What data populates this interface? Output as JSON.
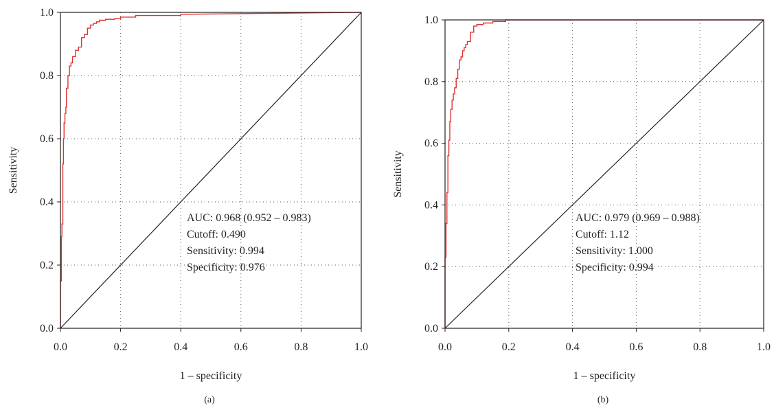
{
  "chart_data": [
    {
      "type": "line",
      "panel_label": "(a)",
      "xlabel": "1 – specificity",
      "ylabel": "Sensitivity",
      "xlim": [
        0,
        1
      ],
      "ylim": [
        0,
        1
      ],
      "xticks": [
        "0.0",
        "0.2",
        "0.4",
        "0.6",
        "0.8",
        "1.0"
      ],
      "yticks": [
        "0.0",
        "0.2",
        "0.4",
        "0.6",
        "0.8",
        "1.0"
      ],
      "grid": "dotted",
      "annotations": [
        "AUC: 0.968 (0.952 – 0.983)",
        "Cutoff: 0.490",
        "Sensitivity: 0.994",
        "Specificity: 0.976"
      ],
      "series": [
        {
          "color": "#e0312f",
          "x": [
            0.0,
            0.0,
            0.003,
            0.003,
            0.005,
            0.005,
            0.008,
            0.008,
            0.01,
            0.01,
            0.012,
            0.012,
            0.015,
            0.015,
            0.018,
            0.018,
            0.02,
            0.02,
            0.025,
            0.025,
            0.03,
            0.03,
            0.035,
            0.035,
            0.04,
            0.04,
            0.05,
            0.05,
            0.06,
            0.06,
            0.07,
            0.07,
            0.08,
            0.08,
            0.09,
            0.09,
            0.1,
            0.1,
            0.11,
            0.11,
            0.12,
            0.12,
            0.13,
            0.13,
            0.15,
            0.15,
            0.18,
            0.18,
            0.2,
            0.2,
            0.25,
            0.25,
            0.4,
            0.4,
            1.0
          ],
          "y": [
            0.0,
            0.15,
            0.15,
            0.29,
            0.29,
            0.33,
            0.33,
            0.52,
            0.52,
            0.6,
            0.6,
            0.65,
            0.65,
            0.68,
            0.68,
            0.7,
            0.7,
            0.76,
            0.76,
            0.8,
            0.8,
            0.83,
            0.83,
            0.84,
            0.84,
            0.86,
            0.86,
            0.88,
            0.88,
            0.89,
            0.89,
            0.92,
            0.92,
            0.93,
            0.93,
            0.95,
            0.95,
            0.96,
            0.96,
            0.965,
            0.965,
            0.97,
            0.97,
            0.975,
            0.975,
            0.978,
            0.978,
            0.98,
            0.98,
            0.985,
            0.985,
            0.99,
            0.99,
            0.994,
            1.0
          ]
        }
      ]
    },
    {
      "type": "line",
      "panel_label": "(b)",
      "xlabel": "1 – specificity",
      "ylabel": "Sensitivity",
      "xlim": [
        0,
        1
      ],
      "ylim": [
        0,
        1
      ],
      "xticks": [
        "0.0",
        "0.2",
        "0.4",
        "0.6",
        "0.8",
        "1.0"
      ],
      "yticks": [
        "0.0",
        "0.2",
        "0.4",
        "0.6",
        "0.8",
        "1.0"
      ],
      "grid": "dotted",
      "annotations": [
        "AUC: 0.979 (0.969 – 0.988)",
        "Cutoff: 1.12",
        "Sensitivity: 1.000",
        "Specificity: 0.994"
      ],
      "series": [
        {
          "color": "#e0312f",
          "x": [
            0.0,
            0.0,
            0.003,
            0.003,
            0.006,
            0.006,
            0.009,
            0.009,
            0.012,
            0.012,
            0.015,
            0.015,
            0.018,
            0.018,
            0.022,
            0.022,
            0.026,
            0.026,
            0.03,
            0.03,
            0.035,
            0.035,
            0.04,
            0.04,
            0.045,
            0.045,
            0.05,
            0.05,
            0.055,
            0.055,
            0.06,
            0.06,
            0.065,
            0.065,
            0.07,
            0.07,
            0.08,
            0.08,
            0.09,
            0.09,
            0.1,
            0.1,
            0.12,
            0.12,
            0.15,
            0.15,
            0.19,
            0.19,
            1.0
          ],
          "y": [
            0.0,
            0.23,
            0.23,
            0.34,
            0.34,
            0.44,
            0.44,
            0.56,
            0.56,
            0.61,
            0.61,
            0.67,
            0.67,
            0.71,
            0.71,
            0.74,
            0.74,
            0.76,
            0.76,
            0.78,
            0.78,
            0.81,
            0.81,
            0.84,
            0.84,
            0.87,
            0.87,
            0.88,
            0.88,
            0.9,
            0.9,
            0.91,
            0.91,
            0.92,
            0.92,
            0.93,
            0.93,
            0.96,
            0.96,
            0.98,
            0.98,
            0.985,
            0.985,
            0.99,
            0.99,
            0.995,
            0.995,
            1.0,
            1.0
          ]
        }
      ]
    }
  ]
}
